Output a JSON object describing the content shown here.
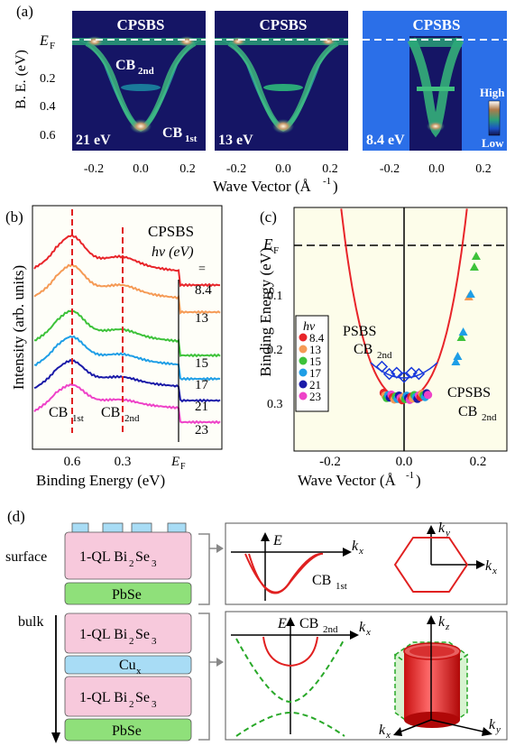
{
  "panel_a": {
    "label": "(a)",
    "title_label": "CPSBS",
    "ef_label": "E",
    "ef_sub": "F",
    "ylabel": "B. E. (eV)",
    "yticks": [
      "0.2",
      "0.4",
      "0.6"
    ],
    "xlabel": "Wave Vector (Å",
    "xlabel_sup": "-1",
    "xlabel_close": ")",
    "xticks": [
      "-0.2",
      "0.0",
      "0.2"
    ],
    "subpanels": [
      {
        "photon": "21 eV"
      },
      {
        "photon": "13 eV"
      },
      {
        "photon": "8.4 eV"
      }
    ],
    "cb2_label": "CB",
    "cb2_sub": "2nd",
    "cb1_label": "CB",
    "cb1_sub": "1st",
    "colorbar_high": "High",
    "colorbar_low": "Low"
  },
  "panel_b": {
    "label": "(b)",
    "title": "CPSBS",
    "hv_label": "hν (eV)",
    "equals": "=",
    "energies": [
      "8.4",
      "13",
      "15",
      "17",
      "21",
      "23"
    ],
    "series_colors": [
      "#e8252a",
      "#f59a55",
      "#3dc23a",
      "#1e9ee6",
      "#1a1aa8",
      "#ee42c8"
    ],
    "ylabel": "Intensity (arb. units)",
    "xlabel": "Binding Energy (eV)",
    "xticks": [
      "0.6",
      "0.3"
    ],
    "ef_tick": "E",
    "ef_sub": "F",
    "cb1_label": "CB",
    "cb1_sub": "1st",
    "cb2_label": "CB",
    "cb2_sub": "2nd"
  },
  "panel_c": {
    "label": "(c)",
    "ylabel": "Binding Energy (eV)",
    "xlabel": "Wave Vector (Å",
    "xlabel_sup": "-1",
    "xlabel_close": ")",
    "yticks": [
      "0.1",
      "0.2",
      "0.3"
    ],
    "xticks": [
      "-0.2",
      "0.0",
      "0.2"
    ],
    "ef_label": "E",
    "ef_sub": "F",
    "psbs_label": "PSBS",
    "psbs_cb": "CB",
    "psbs_sub": "2nd",
    "cpsbs_label": "CPSBS",
    "cpsbs_cb": "CB",
    "cpsbs_sub": "2nd",
    "legend_title": "hν",
    "legend": [
      {
        "name": "8.4",
        "color": "#e8252a"
      },
      {
        "name": "13",
        "color": "#f59a55"
      },
      {
        "name": "15",
        "color": "#3dc23a"
      },
      {
        "name": "17",
        "color": "#1e9ee6"
      },
      {
        "name": "21",
        "color": "#1a1aa8"
      },
      {
        "name": "23",
        "color": "#ee42c8"
      }
    ],
    "background": "#fdfdea",
    "curve_color": "#e8252a"
  },
  "panel_d": {
    "label": "(d)",
    "surface_label": "surface",
    "bulk_label": "bulk",
    "layers": [
      {
        "text": "1-QL Bi",
        "sub1": "2",
        "mid": "Se",
        "sub2": "3",
        "color": "#f7c9dc"
      },
      {
        "text": "PbSe",
        "color": "#8fe07a"
      },
      {
        "text": "1-QL Bi",
        "sub1": "2",
        "mid": "Se",
        "sub2": "3",
        "color": "#f7c9dc"
      },
      {
        "text": "Cu",
        "sub1": "x",
        "color": "#a8dcf5"
      },
      {
        "text": "1-QL Bi",
        "sub1": "2",
        "mid": "Se",
        "sub2": "3",
        "color": "#f7c9dc"
      },
      {
        "text": "PbSe",
        "color": "#8fe07a"
      }
    ],
    "axis_E": "E",
    "axis_kx": "k",
    "axis_x_sub": "x",
    "axis_y_sub": "y",
    "axis_z_sub": "z",
    "cb1_label": "CB",
    "cb1_sub": "1st",
    "cb2_label": "CB",
    "cb2_sub": "2nd"
  }
}
